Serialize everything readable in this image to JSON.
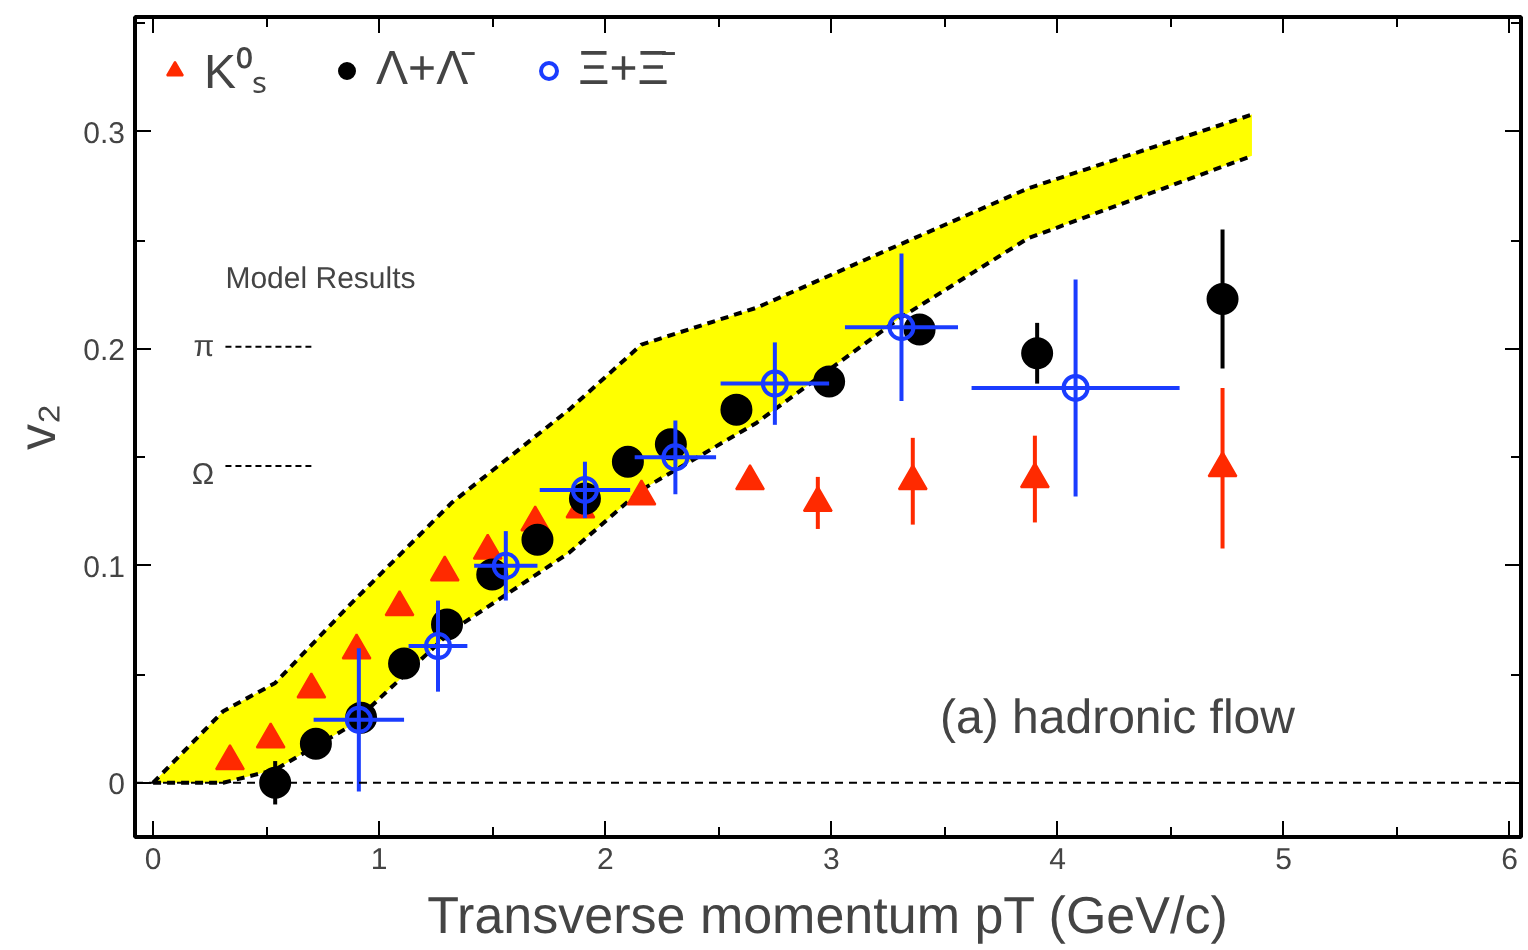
{
  "chart_data": {
    "type": "scatter",
    "xlabel": "Transverse momentum pT (GeV/c)",
    "ylabel": "v₂",
    "xlim": [
      -0.08,
      6.05
    ],
    "ylim": [
      -0.025,
      0.353
    ],
    "xticks": [
      0,
      1,
      2,
      3,
      4,
      5,
      6
    ],
    "yticks": [
      0,
      0.1,
      0.2,
      0.3
    ],
    "grid": false,
    "legend": "top left",
    "annotations": [
      "Model Results",
      "π",
      "Ω",
      "(a) hadronic flow"
    ],
    "ref_lines": [
      {
        "axis": "y",
        "value": 0,
        "line_style": "dashed",
        "color": "#000000"
      }
    ],
    "series": [
      {
        "type": "line",
        "color": "#000000",
        "line_style": "dashed",
        "x": [
          0,
          0.31,
          0.54,
          0.87,
          1.32,
          1.84,
          2.16,
          2.67,
          3.3,
          3.87,
          4.86
        ],
        "values": [
          0,
          0.033,
          0.046,
          0.082,
          0.129,
          0.172,
          0.202,
          0.219,
          0.248,
          0.274,
          0.308
        ],
        "lower": [
          0,
          0,
          0.006,
          0.026,
          0.07,
          0.106,
          0.135,
          0.166,
          0.214,
          0.251,
          0.289
        ],
        "upper": [
          0,
          0.033,
          0.046,
          0.082,
          0.129,
          0.172,
          0.202,
          0.219,
          0.248,
          0.274,
          0.308
        ]
      },
      {
        "type": "line",
        "color": "#000000",
        "line_style": "dashed",
        "x": [
          0,
          0.31,
          0.54,
          0.87,
          1.32,
          1.84,
          2.16,
          2.67,
          3.3,
          3.87,
          4.86
        ],
        "values": [
          0,
          0,
          0.006,
          0.026,
          0.07,
          0.106,
          0.135,
          0.166,
          0.214,
          0.251,
          0.289
        ]
      },
      {
        "name": "K⁰ₛ",
        "color": "#ff2a00",
        "marker": "triangle",
        "x": [
          0.34,
          0.52,
          0.7,
          0.9,
          1.09,
          1.29,
          1.48,
          1.69,
          1.89,
          2.16,
          2.64,
          2.94,
          3.36,
          3.9,
          4.73
        ],
        "values": [
          0.01,
          0.02,
          0.043,
          0.061,
          0.081,
          0.097,
          0.107,
          0.12,
          0.126,
          0.132,
          0.139,
          0.129,
          0.139,
          0.14,
          0.145
        ],
        "errors": [
          null,
          null,
          null,
          null,
          null,
          null,
          null,
          null,
          null,
          null,
          null,
          0.012,
          0.02,
          0.02,
          0.037
        ]
      },
      {
        "name": "Λ+Λ̄",
        "color": "#000000",
        "marker": "circle",
        "x": [
          0.54,
          0.72,
          0.92,
          1.11,
          1.3,
          1.5,
          1.7,
          1.91,
          2.1,
          2.29,
          2.58,
          2.99,
          3.39,
          3.91,
          4.73
        ],
        "values": [
          0.0,
          0.018,
          0.03,
          0.055,
          0.073,
          0.096,
          0.112,
          0.131,
          0.148,
          0.156,
          0.172,
          0.185,
          0.209,
          0.198,
          0.223
        ],
        "errors": [
          0.01,
          null,
          null,
          null,
          null,
          null,
          null,
          null,
          null,
          null,
          null,
          null,
          null,
          0.014,
          0.032
        ]
      },
      {
        "name": "Ξ+Ξ̄",
        "color": "#1a3cff",
        "marker": "open_circle",
        "x": [
          0.91,
          1.26,
          1.56,
          1.91,
          2.31,
          2.75,
          3.31,
          4.08
        ],
        "values": [
          0.029,
          0.063,
          0.1,
          0.135,
          0.15,
          0.184,
          0.21,
          0.182
        ],
        "errors": [
          0.033,
          0.021,
          0.016,
          0.013,
          0.017,
          0.019,
          0.034,
          0.05
        ],
        "xerrors": [
          0.2,
          0.13,
          0.14,
          0.2,
          0.18,
          0.24,
          0.25,
          0.46
        ]
      }
    ]
  }
}
